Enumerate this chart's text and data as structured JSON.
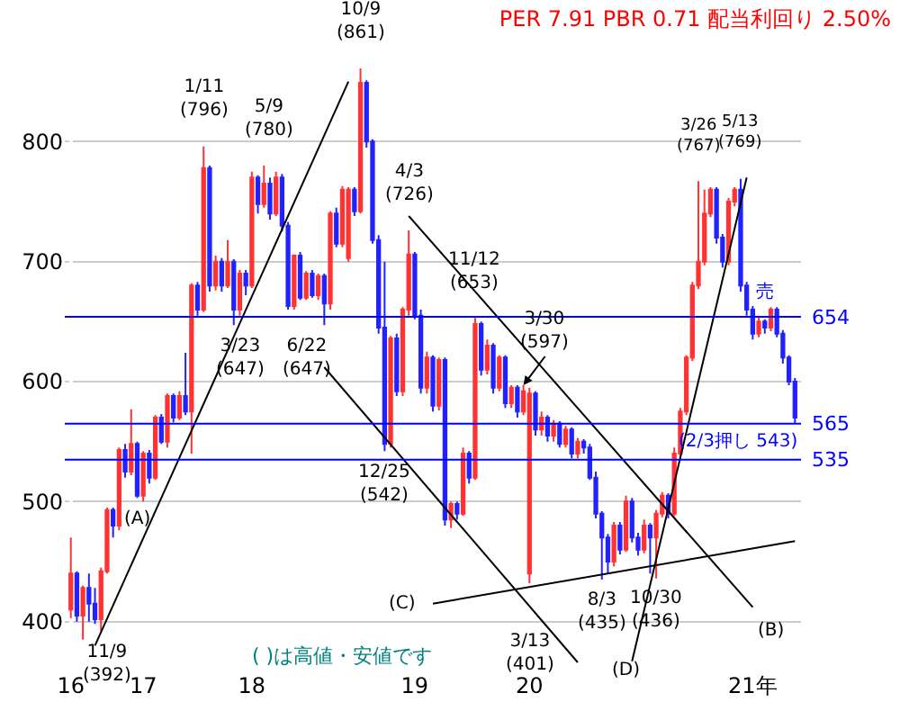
{
  "chart_data": {
    "type": "candlestick",
    "title": "PER 7.91 PBR 0.71 配当利回り 2.50%",
    "categories": [
      "16",
      null,
      null,
      null,
      null,
      null,
      null,
      null,
      null,
      null,
      null,
      null,
      "17",
      null,
      null,
      null,
      null,
      null,
      null,
      null,
      null,
      null,
      null,
      null,
      null,
      null,
      null,
      null,
      null,
      null,
      "18",
      null,
      null,
      null,
      null,
      null,
      null,
      null,
      null,
      null,
      null,
      null,
      null,
      null,
      null,
      null,
      null,
      null,
      null,
      null,
      null,
      null,
      null,
      null,
      null,
      null,
      null,
      "19",
      null,
      null,
      null,
      null,
      null,
      null,
      null,
      null,
      null,
      null,
      null,
      null,
      null,
      null,
      null,
      null,
      null,
      null,
      "20",
      null,
      null,
      null,
      null,
      null,
      null,
      null,
      null,
      null,
      null,
      null,
      null,
      null,
      null,
      null,
      null,
      null,
      null,
      null,
      null,
      null,
      null,
      null,
      null,
      null,
      null,
      null,
      null,
      null,
      null,
      null,
      null,
      null,
      null,
      null,
      null,
      "21年",
      null,
      null,
      null,
      null,
      null,
      null,
      null
    ],
    "ohlc": [
      [
        410,
        470,
        403,
        440
      ],
      [
        440,
        442,
        400,
        405
      ],
      [
        405,
        430,
        385,
        428
      ],
      [
        428,
        440,
        400,
        415
      ],
      [
        415,
        428,
        398,
        402
      ],
      [
        402,
        445,
        392,
        442
      ],
      [
        442,
        495,
        440,
        493
      ],
      [
        493,
        495,
        470,
        480
      ],
      [
        480,
        545,
        476,
        543
      ],
      [
        543,
        548,
        520,
        525
      ],
      [
        525,
        577,
        522,
        548
      ],
      [
        548,
        550,
        503,
        505
      ],
      [
        505,
        542,
        500,
        540
      ],
      [
        540,
        543,
        515,
        520
      ],
      [
        520,
        572,
        518,
        570
      ],
      [
        570,
        573,
        548,
        550
      ],
      [
        550,
        590,
        545,
        588
      ],
      [
        588,
        590,
        566,
        570
      ],
      [
        570,
        592,
        568,
        588
      ],
      [
        588,
        624,
        572,
        575
      ],
      [
        575,
        682,
        540,
        680
      ],
      [
        680,
        683,
        655,
        660
      ],
      [
        660,
        796,
        658,
        778
      ],
      [
        778,
        780,
        675,
        680
      ],
      [
        680,
        705,
        676,
        700
      ],
      [
        700,
        703,
        675,
        680
      ],
      [
        680,
        718,
        678,
        700
      ],
      [
        700,
        702,
        647,
        660
      ],
      [
        660,
        693,
        655,
        690
      ],
      [
        690,
        693,
        672,
        680
      ],
      [
        680,
        775,
        678,
        770
      ],
      [
        770,
        772,
        740,
        748
      ],
      [
        748,
        780,
        745,
        765
      ],
      [
        765,
        770,
        735,
        740
      ],
      [
        740,
        775,
        738,
        770
      ],
      [
        770,
        773,
        725,
        730
      ],
      [
        730,
        733,
        660,
        663
      ],
      [
        663,
        706,
        660,
        705
      ],
      [
        705,
        708,
        668,
        670
      ],
      [
        670,
        692,
        668,
        690
      ],
      [
        690,
        693,
        670,
        672
      ],
      [
        672,
        690,
        668,
        688
      ],
      [
        688,
        690,
        647,
        665
      ],
      [
        665,
        742,
        660,
        740
      ],
      [
        740,
        745,
        712,
        715
      ],
      [
        715,
        763,
        712,
        760
      ],
      [
        703,
        762,
        700,
        760
      ],
      [
        760,
        762,
        738,
        742
      ],
      [
        742,
        861,
        740,
        849
      ],
      [
        849,
        851,
        795,
        800
      ],
      [
        800,
        802,
        715,
        718
      ],
      [
        718,
        722,
        640,
        645
      ],
      [
        645,
        700,
        542,
        548
      ],
      [
        548,
        638,
        545,
        636
      ],
      [
        636,
        640,
        588,
        592
      ],
      [
        592,
        662,
        588,
        660
      ],
      [
        660,
        726,
        655,
        706
      ],
      [
        706,
        708,
        652,
        655
      ],
      [
        655,
        660,
        590,
        595
      ],
      [
        595,
        625,
        590,
        620
      ],
      [
        620,
        622,
        575,
        580
      ],
      [
        580,
        620,
        576,
        618
      ],
      [
        618,
        620,
        480,
        485
      ],
      [
        485,
        500,
        478,
        498
      ],
      [
        498,
        500,
        485,
        490
      ],
      [
        490,
        545,
        488,
        540
      ],
      [
        540,
        542,
        515,
        520
      ],
      [
        520,
        653,
        518,
        648
      ],
      [
        648,
        650,
        605,
        610
      ],
      [
        610,
        635,
        606,
        630
      ],
      [
        630,
        632,
        590,
        595
      ],
      [
        595,
        622,
        592,
        620
      ],
      [
        620,
        622,
        578,
        582
      ],
      [
        582,
        597,
        578,
        595
      ],
      [
        595,
        597,
        570,
        575
      ],
      [
        575,
        597,
        572,
        592
      ],
      [
        440,
        595,
        432,
        590
      ],
      [
        590,
        592,
        555,
        560
      ],
      [
        560,
        575,
        555,
        570
      ],
      [
        570,
        572,
        550,
        555
      ],
      [
        555,
        568,
        550,
        565
      ],
      [
        565,
        567,
        545,
        548
      ],
      [
        548,
        563,
        545,
        560
      ],
      [
        560,
        562,
        536,
        540
      ],
      [
        540,
        553,
        536,
        550
      ],
      [
        550,
        552,
        540,
        545
      ],
      [
        545,
        548,
        518,
        520
      ],
      [
        520,
        525,
        486,
        490
      ],
      [
        490,
        492,
        435,
        470
      ],
      [
        470,
        473,
        440,
        450
      ],
      [
        450,
        483,
        446,
        480
      ],
      [
        480,
        483,
        456,
        460
      ],
      [
        460,
        505,
        458,
        500
      ],
      [
        500,
        503,
        466,
        470
      ],
      [
        470,
        474,
        455,
        460
      ],
      [
        460,
        485,
        457,
        480
      ],
      [
        480,
        482,
        440,
        470
      ],
      [
        470,
        493,
        436,
        490
      ],
      [
        490,
        508,
        487,
        505
      ],
      [
        505,
        507,
        486,
        490
      ],
      [
        490,
        545,
        488,
        540
      ],
      [
        540,
        578,
        537,
        575
      ],
      [
        575,
        622,
        572,
        620
      ],
      [
        620,
        683,
        617,
        680
      ],
      [
        680,
        767,
        677,
        700
      ],
      [
        700,
        760,
        697,
        740
      ],
      [
        740,
        762,
        737,
        760
      ],
      [
        760,
        762,
        715,
        720
      ],
      [
        720,
        723,
        695,
        700
      ],
      [
        700,
        753,
        697,
        750
      ],
      [
        750,
        762,
        746,
        760
      ],
      [
        760,
        769,
        675,
        680
      ],
      [
        680,
        683,
        655,
        660
      ],
      [
        660,
        663,
        635,
        640
      ],
      [
        640,
        655,
        637,
        650
      ],
      [
        650,
        652,
        640,
        645
      ],
      [
        645,
        662,
        642,
        660
      ],
      [
        660,
        662,
        637,
        640
      ],
      [
        640,
        643,
        615,
        620
      ],
      [
        620,
        622,
        597,
        600
      ],
      [
        600,
        603,
        565,
        570
      ]
    ],
    "colors": [
      "#ff3333",
      "#2222ff",
      "#ff3333",
      "#2222ff",
      "#2222ff",
      "#ff3333",
      "#ff3333",
      "#2222ff",
      "#ff3333",
      "#2222ff",
      "#ff3333",
      "#2222ff",
      "#ff3333",
      "#2222ff",
      "#ff3333",
      "#2222ff",
      "#ff3333",
      "#2222ff",
      "#ff3333",
      "#2222ff",
      "#ff3333",
      "#2222ff",
      "#ff3333",
      "#2222ff",
      "#ff3333",
      "#2222ff",
      "#ff3333",
      "#2222ff",
      "#ff3333",
      "#2222ff",
      "#ff3333",
      "#2222ff",
      "#ff3333",
      "#2222ff",
      "#ff3333",
      "#2222ff",
      "#2222ff",
      "#ff3333",
      "#2222ff",
      "#ff3333",
      "#2222ff",
      "#ff3333",
      "#2222ff",
      "#ff3333",
      "#2222ff",
      "#ff3333",
      "#ff3333",
      "#2222ff",
      "#ff3333",
      "#2222ff",
      "#2222ff",
      "#2222ff",
      "#2222ff",
      "#ff3333",
      "#2222ff",
      "#ff3333",
      "#ff3333",
      "#2222ff",
      "#2222ff",
      "#ff3333",
      "#2222ff",
      "#ff3333",
      "#2222ff",
      "#ff3333",
      "#2222ff",
      "#ff3333",
      "#2222ff",
      "#ff3333",
      "#2222ff",
      "#ff3333",
      "#2222ff",
      "#ff3333",
      "#2222ff",
      "#ff3333",
      "#2222ff",
      "#ff3333",
      "#ff3333",
      "#2222ff",
      "#ff3333",
      "#2222ff",
      "#ff3333",
      "#2222ff",
      "#ff3333",
      "#2222ff",
      "#ff3333",
      "#2222ff",
      "#2222ff",
      "#2222ff",
      "#2222ff",
      "#2222ff",
      "#ff3333",
      "#2222ff",
      "#ff3333",
      "#2222ff",
      "#2222ff",
      "#ff3333",
      "#2222ff",
      "#ff3333",
      "#ff3333",
      "#2222ff",
      "#ff3333",
      "#ff3333",
      "#ff3333",
      "#ff3333",
      "#ff3333",
      "#ff3333",
      "#ff3333",
      "#2222ff",
      "#2222ff",
      "#ff3333",
      "#ff3333",
      "#2222ff",
      "#2222ff",
      "#2222ff",
      "#ff3333",
      "#2222ff",
      "#ff3333",
      "#2222ff",
      "#2222ff",
      "#2222ff",
      "#2222ff"
    ],
    "series": [
      {
        "type": "line",
        "color": "#000000",
        "values": [
          null,
          null,
          null,
          null,
          380,
          null,
          null,
          null,
          null,
          null,
          null,
          null,
          null,
          null,
          null,
          null,
          null,
          null,
          null,
          null,
          null,
          null,
          null,
          null,
          null,
          null,
          null,
          null,
          null,
          null,
          null,
          null,
          null,
          null,
          null,
          null,
          null,
          null,
          null,
          null,
          null,
          null,
          null,
          null,
          null,
          null,
          850,
          null,
          null,
          null,
          null,
          null,
          null,
          null,
          null,
          null,
          null,
          null,
          null,
          null,
          null,
          null,
          null,
          null,
          null,
          null,
          null,
          null,
          null,
          null,
          null,
          null,
          null,
          null,
          null,
          null,
          null,
          null,
          null,
          null,
          null,
          null,
          null,
          null,
          null,
          null,
          null,
          null,
          null,
          null,
          null,
          null,
          null,
          null,
          null,
          null,
          null,
          null,
          null,
          null,
          null,
          null,
          null,
          null,
          null,
          null,
          null,
          null,
          null,
          null,
          null,
          null,
          null,
          null,
          null,
          null,
          null,
          null,
          null,
          null,
          null
        ]
      },
      {
        "type": "line",
        "color": "#000000",
        "values": [
          null,
          null,
          null,
          null,
          null,
          null,
          null,
          null,
          null,
          null,
          null,
          null,
          null,
          null,
          null,
          null,
          null,
          null,
          null,
          null,
          null,
          null,
          null,
          null,
          null,
          null,
          null,
          null,
          null,
          null,
          null,
          null,
          null,
          null,
          null,
          null,
          null,
          null,
          null,
          null,
          null,
          null,
          null,
          null,
          null,
          null,
          null,
          null,
          null,
          null,
          null,
          null,
          null,
          null,
          null,
          null,
          738,
          null,
          null,
          null,
          null,
          null,
          null,
          null,
          null,
          null,
          null,
          null,
          null,
          null,
          null,
          null,
          null,
          null,
          null,
          null,
          null,
          null,
          null,
          null,
          null,
          null,
          null,
          null,
          null,
          null,
          null,
          null,
          null,
          null,
          null,
          null,
          null,
          null,
          null,
          null,
          null,
          null,
          null,
          null,
          null,
          null,
          null,
          null,
          null,
          null,
          null,
          null,
          null,
          null,
          null,
          null,
          null,
          412,
          null,
          null,
          null,
          null,
          null,
          null,
          null
        ]
      },
      {
        "type": "line",
        "color": "#000000",
        "values": [
          null,
          null,
          null,
          null,
          null,
          null,
          null,
          null,
          null,
          null,
          null,
          null,
          null,
          null,
          null,
          null,
          null,
          null,
          null,
          null,
          null,
          null,
          null,
          null,
          null,
          null,
          null,
          null,
          null,
          null,
          null,
          null,
          null,
          null,
          null,
          null,
          null,
          null,
          null,
          null,
          null,
          null,
          612,
          null,
          null,
          null,
          null,
          null,
          null,
          null,
          null,
          null,
          null,
          null,
          null,
          null,
          null,
          null,
          null,
          null,
          null,
          null,
          null,
          null,
          null,
          null,
          null,
          null,
          null,
          null,
          null,
          null,
          null,
          null,
          null,
          null,
          null,
          null,
          null,
          null,
          null,
          null,
          null,
          null,
          366,
          null,
          null,
          null,
          null,
          null,
          null,
          null,
          null,
          null,
          null,
          null,
          null,
          null,
          null,
          null,
          null,
          null,
          null,
          null,
          null,
          null,
          null,
          null,
          null,
          null,
          null,
          null,
          null,
          null,
          null,
          null,
          null,
          null,
          null,
          null,
          null
        ]
      },
      {
        "type": "line",
        "color": "#000000",
        "values": [
          null,
          null,
          null,
          null,
          null,
          null,
          null,
          null,
          null,
          null,
          null,
          null,
          null,
          null,
          null,
          null,
          null,
          null,
          null,
          null,
          null,
          null,
          null,
          null,
          null,
          null,
          null,
          null,
          null,
          null,
          null,
          null,
          null,
          null,
          null,
          null,
          null,
          null,
          null,
          null,
          null,
          null,
          null,
          null,
          null,
          null,
          null,
          null,
          null,
          null,
          null,
          null,
          null,
          null,
          null,
          null,
          null,
          null,
          null,
          null,
          415,
          null,
          null,
          null,
          null,
          null,
          null,
          null,
          null,
          null,
          null,
          null,
          null,
          null,
          null,
          null,
          null,
          null,
          null,
          null,
          null,
          null,
          null,
          null,
          null,
          null,
          null,
          null,
          null,
          null,
          null,
          null,
          null,
          null,
          null,
          null,
          null,
          null,
          null,
          null,
          null,
          null,
          null,
          null,
          null,
          null,
          null,
          null,
          null,
          null,
          null,
          null,
          null,
          null,
          null,
          null,
          null,
          null,
          null,
          null,
          467
        ]
      },
      {
        "type": "line",
        "color": "#000000",
        "values": [
          null,
          null,
          null,
          null,
          null,
          null,
          null,
          null,
          null,
          null,
          null,
          null,
          null,
          null,
          null,
          null,
          null,
          null,
          null,
          null,
          null,
          null,
          null,
          null,
          null,
          null,
          null,
          null,
          null,
          null,
          null,
          null,
          null,
          null,
          null,
          null,
          null,
          null,
          null,
          null,
          null,
          null,
          null,
          null,
          null,
          null,
          null,
          null,
          null,
          null,
          null,
          null,
          null,
          null,
          null,
          null,
          null,
          null,
          null,
          null,
          null,
          null,
          null,
          null,
          null,
          null,
          null,
          null,
          null,
          null,
          null,
          null,
          null,
          null,
          null,
          null,
          null,
          null,
          null,
          null,
          null,
          null,
          null,
          null,
          null,
          null,
          null,
          null,
          null,
          null,
          null,
          null,
          null,
          367,
          null,
          null,
          null,
          null,
          null,
          null,
          null,
          null,
          null,
          null,
          null,
          null,
          null,
          null,
          null,
          null,
          null,
          null,
          770,
          null,
          null,
          null,
          null,
          null,
          null,
          null,
          null
        ]
      }
    ],
    "ref_lines": [
      {
        "axis": "y",
        "value": 654,
        "label": "654",
        "color": "#0000ff"
      },
      {
        "axis": "y",
        "value": 565,
        "label": "565",
        "color": "#0000ff"
      },
      {
        "axis": "y",
        "value": 535,
        "label": "535",
        "color": "#0000ff"
      }
    ],
    "annotations": [
      {
        "text": "1/11\n(796)",
        "y": 796
      },
      {
        "text": "3/23\n(647)",
        "y": 647
      },
      {
        "text": "5/9\n(780)",
        "y": 780
      },
      {
        "text": "6/22\n(647)",
        "y": 647
      },
      {
        "text": "11/9\n(392)",
        "y": 392
      },
      "(A)",
      {
        "text": "10/9\n(861)",
        "y": 861
      },
      {
        "text": "4/3\n(726)",
        "y": 726
      },
      {
        "text": "12/25\n(542)",
        "y": 542
      },
      {
        "text": "11/12\n(653)",
        "y": 653
      },
      {
        "text": "3/30\n(597)",
        "y": 597
      },
      {
        "text": "3/13\n(401)",
        "y": 401
      },
      {
        "text": "8/3\n(435)",
        "y": 435
      },
      {
        "text": "10/30\n(436)",
        "y": 436
      },
      {
        "text": "3/26\n(767)",
        "y": 767
      },
      {
        "text": "5/13\n(769)",
        "y": 769
      },
      "(B)",
      "(C)",
      "(D)",
      "(2/3押し 543)",
      "売",
      "( )は高値・安値です"
    ],
    "ylim": [
      360,
      885
    ],
    "yticks": [
      400,
      500,
      600,
      700,
      800
    ],
    "grid": "y"
  }
}
